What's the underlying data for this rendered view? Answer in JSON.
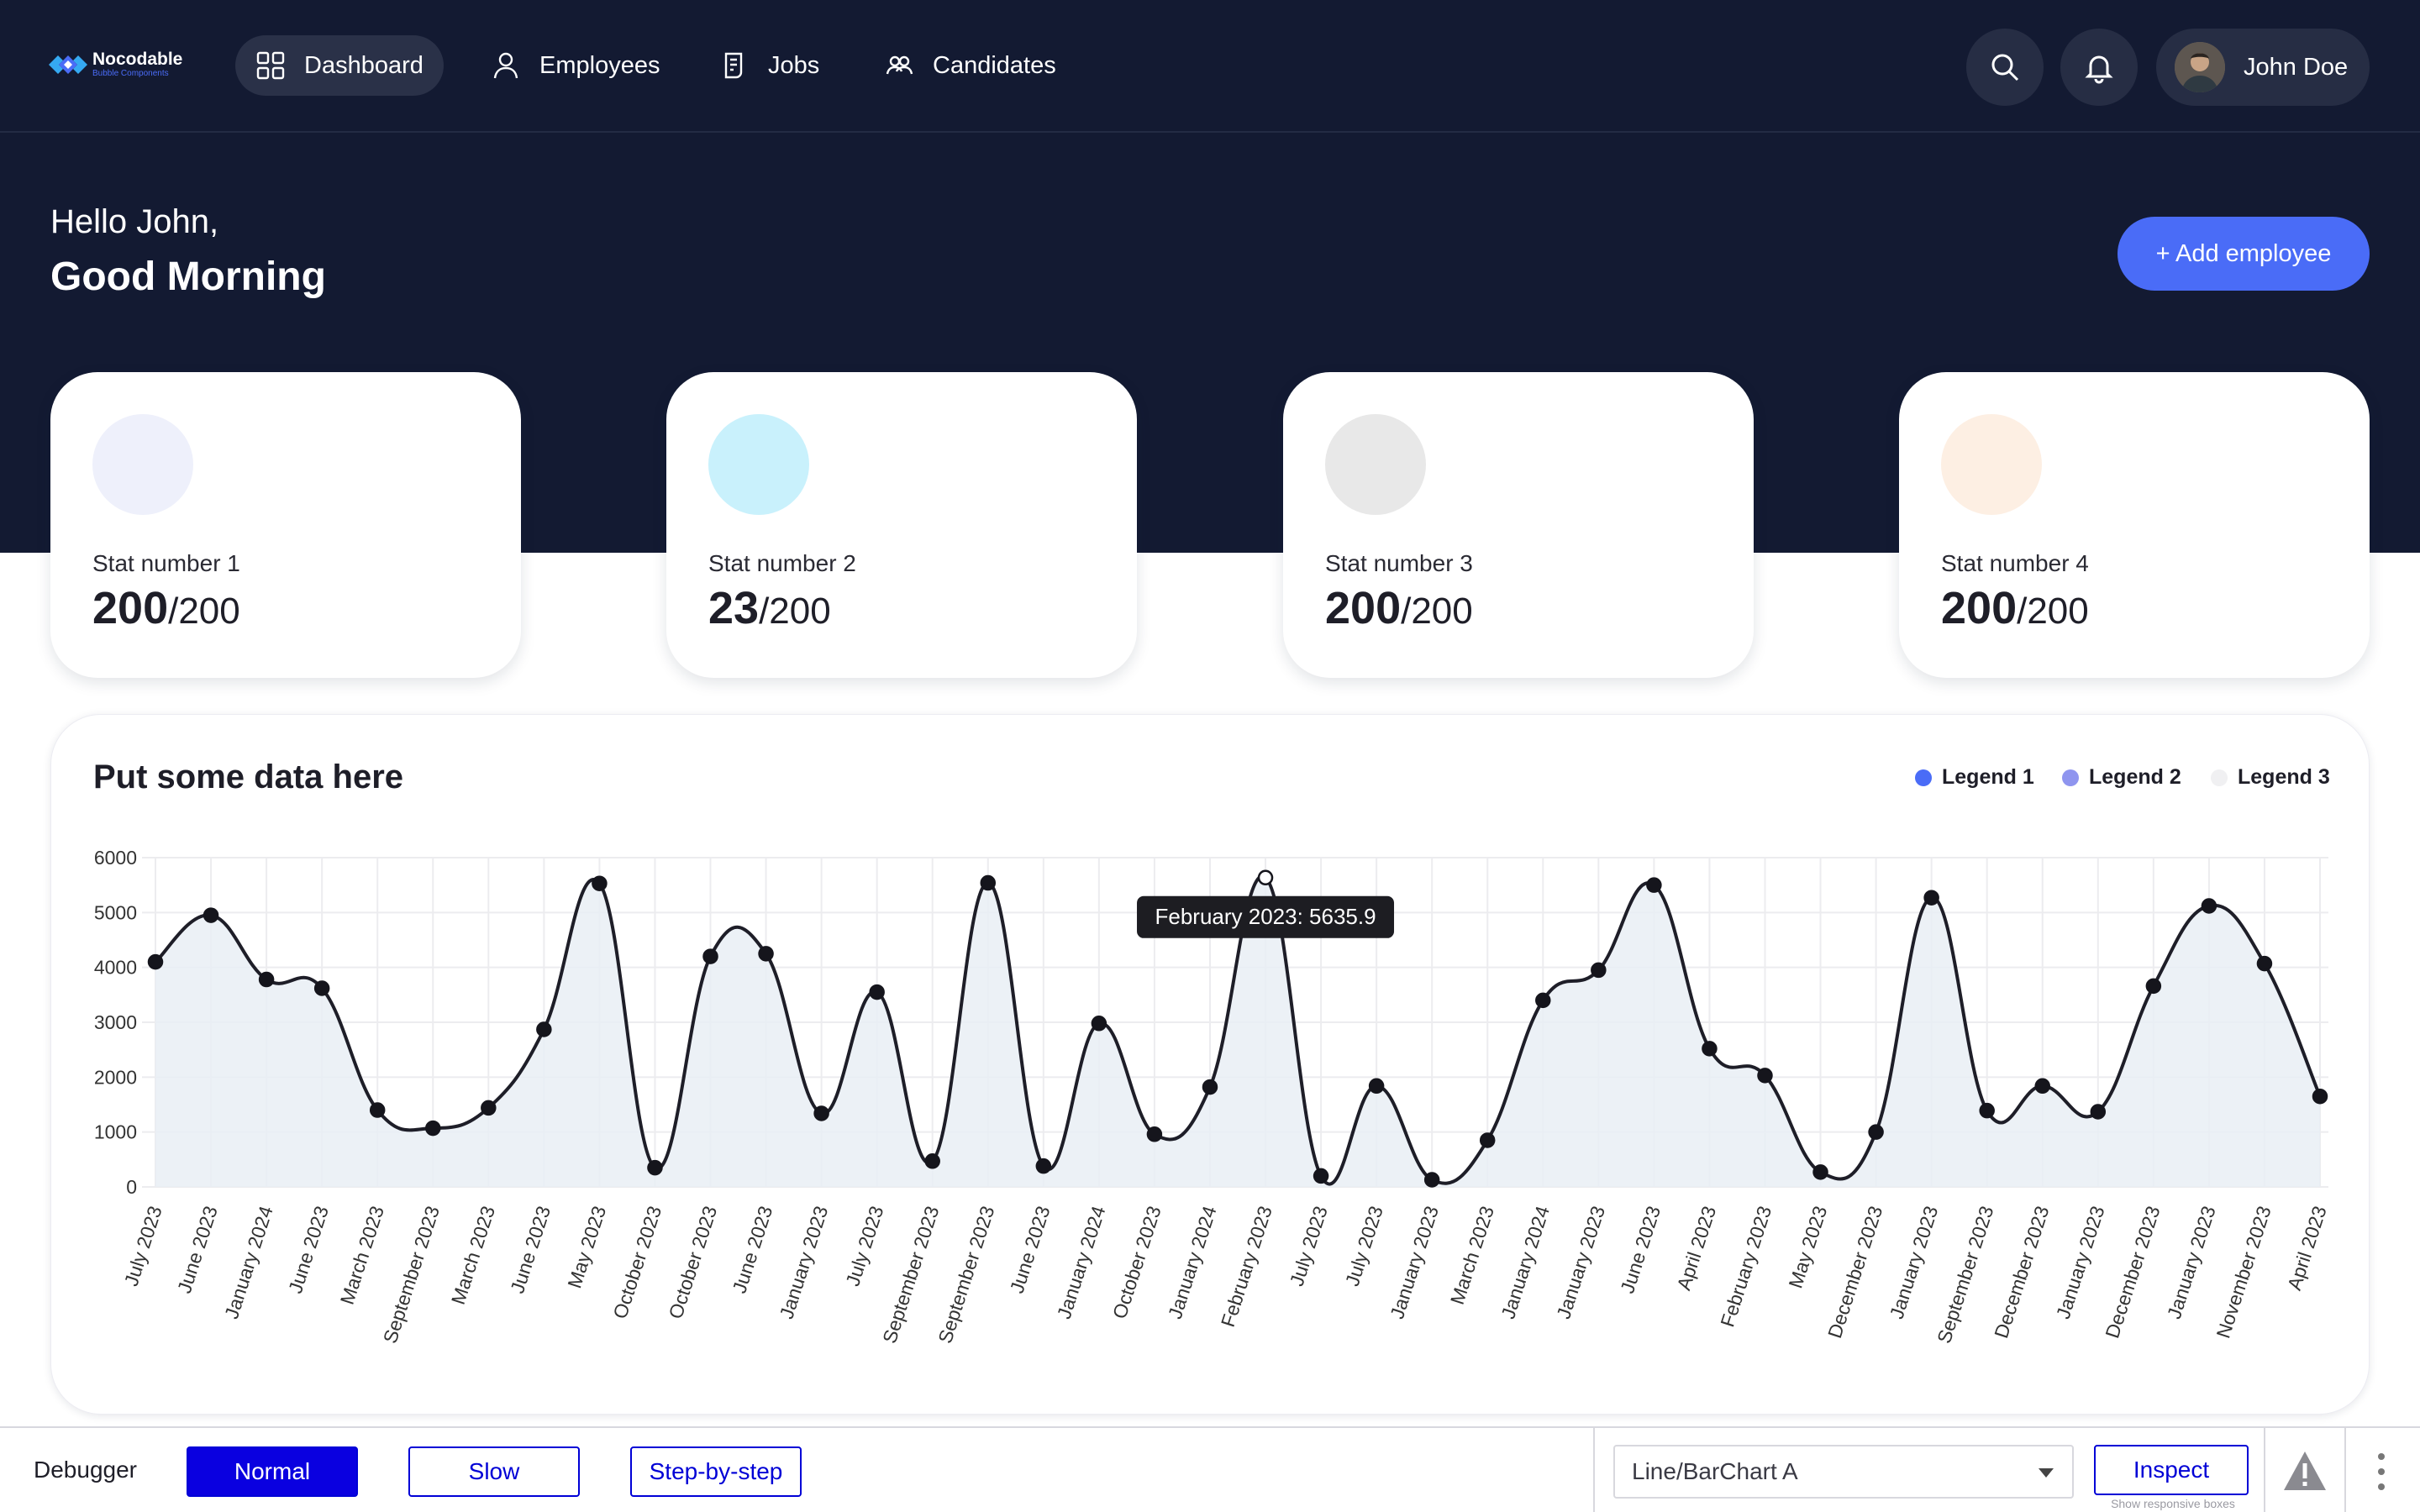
{
  "app": {
    "logo_name": "Nocodable",
    "logo_sub": "Bubble Components"
  },
  "nav": {
    "items": [
      {
        "label": "Dashboard",
        "icon": "grid-icon",
        "active": true
      },
      {
        "label": "Employees",
        "icon": "person-icon",
        "active": false
      },
      {
        "label": "Jobs",
        "icon": "document-icon",
        "active": false
      },
      {
        "label": "Candidates",
        "icon": "people-icon",
        "active": false
      }
    ],
    "search_icon": "search-icon",
    "bell_icon": "bell-icon",
    "user_name": "John Doe"
  },
  "greeting": {
    "hello": "Hello John,",
    "time_of_day": "Good Morning",
    "add_button": "+ Add employee"
  },
  "stats": [
    {
      "label": "Stat number 1",
      "value": "200",
      "total": "/200",
      "color": "#eef0fb"
    },
    {
      "label": "Stat number 2",
      "value": "23",
      "total": "/200",
      "color": "#c9f1fc"
    },
    {
      "label": "Stat number 3",
      "value": "200",
      "total": "/200",
      "color": "#e8e8e8"
    },
    {
      "label": "Stat number 4",
      "value": "200",
      "total": "/200",
      "color": "#fdefe3"
    }
  ],
  "chart_card": {
    "title": "Put some data here",
    "legend": [
      {
        "label": "Legend 1",
        "color": "#4a6cf7"
      },
      {
        "label": "Legend 2",
        "color": "#8f95ef"
      },
      {
        "label": "Legend 3",
        "color": "#f0f0f2"
      }
    ]
  },
  "chart_data": {
    "type": "area",
    "categories": [
      "July 2023",
      "June 2023",
      "January 2024",
      "June 2023",
      "March 2023",
      "September 2023",
      "March 2023",
      "June 2023",
      "May 2023",
      "October 2023",
      "October 2023",
      "June 2023",
      "January 2023",
      "July 2023",
      "September 2023",
      "September 2023",
      "June 2023",
      "January 2024",
      "October 2023",
      "January 2024",
      "February 2023",
      "July 2023",
      "July 2023",
      "January 2023",
      "March 2023",
      "January 2024",
      "January 2023",
      "June 2023",
      "April 2023",
      "February 2023",
      "May 2023",
      "December 2023",
      "January 2023",
      "September 2023",
      "December 2023",
      "January 2023",
      "December 2023",
      "January 2023",
      "November 2023",
      "April 2023"
    ],
    "values": [
      4100,
      4950,
      3780,
      3620,
      1400,
      1070,
      1440,
      2870,
      5530,
      350,
      4200,
      4250,
      1340,
      3550,
      470,
      5540,
      380,
      2980,
      960,
      1820,
      5636,
      200,
      1840,
      130,
      850,
      3400,
      3950,
      5500,
      2520,
      2030,
      270,
      1000,
      5270,
      1390,
      1840,
      1370,
      3660,
      5120,
      4070,
      1650
    ],
    "ylim": [
      0,
      6000
    ],
    "yticks": [
      0,
      1000,
      2000,
      3000,
      4000,
      5000,
      6000
    ],
    "grid": true,
    "tooltip": {
      "index": 20,
      "text": "February 2023: 5635.9"
    },
    "line_color": "#1e1e28",
    "fill_color": "#e9eef4"
  },
  "debugger": {
    "label": "Debugger",
    "modes": [
      "Normal",
      "Slow",
      "Step-by-step"
    ],
    "active_mode": "Normal",
    "element_select": "Line/BarChart A",
    "inspect": "Inspect",
    "inspect_sub": "Show responsive boxes",
    "warning_icon": "warning-icon",
    "menu_icon": "kebab-menu-icon"
  }
}
